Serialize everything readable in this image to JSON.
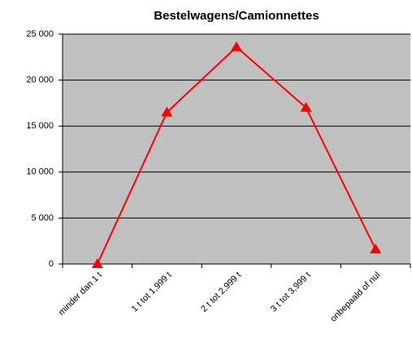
{
  "chart_data": {
    "type": "line",
    "title": "Bestelwagens/Camionnettes",
    "categories": [
      "minder dan 1 t",
      "1 t tot  1,999 t",
      "2 t tot  2,999 t",
      "3 t tot  3,999 t",
      "onbepaald of nul"
    ],
    "series": [
      {
        "name": "Bestelwagens/Camionnettes",
        "color": "#ff0000",
        "values": [
          0,
          16500,
          23600,
          17000,
          1600
        ]
      }
    ],
    "ylim": [
      0,
      25000
    ],
    "yticks": [
      0,
      {
        "value": 5000,
        "label": "5 000"
      },
      {
        "value": 10000,
        "label": "10 000"
      },
      {
        "value": 15000,
        "label": "15 000"
      },
      {
        "value": 20000,
        "label": "20 000"
      },
      {
        "value": 25000,
        "label": "25 000"
      }
    ],
    "grid": true
  }
}
